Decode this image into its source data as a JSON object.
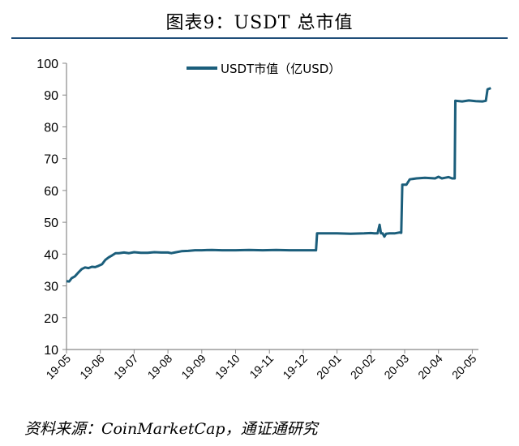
{
  "figure": {
    "title": "图表9：USDT 总市值",
    "source": "资料来源：CoinMarketCap，通证通研究"
  },
  "chart_data": {
    "type": "line",
    "series_color": "#1b5e7b",
    "yticks": [
      "100",
      "90",
      "80",
      "70",
      "60",
      "50",
      "40",
      "30",
      "20",
      "10"
    ],
    "ylim": [
      10,
      100
    ],
    "xticks": [
      "19-05",
      "19-06",
      "19-07",
      "19-08",
      "19-09",
      "19-10",
      "19-11",
      "19-12",
      "20-01",
      "20-02",
      "20-03",
      "20-04",
      "20-05"
    ],
    "legend": {
      "label": "USDT市值（亿USD）",
      "placement": "top-center"
    },
    "grid": false,
    "series": [
      {
        "name": "USDT市值（亿USD）",
        "points": [
          [
            0.0,
            31.5
          ],
          [
            0.08,
            31.4
          ],
          [
            0.15,
            32.4
          ],
          [
            0.25,
            33.0
          ],
          [
            0.35,
            34.2
          ],
          [
            0.45,
            35.3
          ],
          [
            0.55,
            35.8
          ],
          [
            0.65,
            35.6
          ],
          [
            0.75,
            36.0
          ],
          [
            0.85,
            35.9
          ],
          [
            0.95,
            36.3
          ],
          [
            1.05,
            36.8
          ],
          [
            1.15,
            38.2
          ],
          [
            1.25,
            39.0
          ],
          [
            1.35,
            39.6
          ],
          [
            1.45,
            40.3
          ],
          [
            1.55,
            40.3
          ],
          [
            1.7,
            40.5
          ],
          [
            1.85,
            40.3
          ],
          [
            2.0,
            40.6
          ],
          [
            2.2,
            40.4
          ],
          [
            2.4,
            40.4
          ],
          [
            2.6,
            40.6
          ],
          [
            2.8,
            40.5
          ],
          [
            3.0,
            40.5
          ],
          [
            3.1,
            40.3
          ],
          [
            3.2,
            40.5
          ],
          [
            3.4,
            40.9
          ],
          [
            3.6,
            41.0
          ],
          [
            3.8,
            41.2
          ],
          [
            4.0,
            41.2
          ],
          [
            4.3,
            41.3
          ],
          [
            4.6,
            41.2
          ],
          [
            5.0,
            41.2
          ],
          [
            5.4,
            41.3
          ],
          [
            5.8,
            41.2
          ],
          [
            6.2,
            41.3
          ],
          [
            6.6,
            41.2
          ],
          [
            7.0,
            41.2
          ],
          [
            7.3,
            41.2
          ],
          [
            7.38,
            41.2
          ],
          [
            7.41,
            46.5
          ],
          [
            7.6,
            46.5
          ],
          [
            8.0,
            46.5
          ],
          [
            8.4,
            46.4
          ],
          [
            8.8,
            46.5
          ],
          [
            9.0,
            46.6
          ],
          [
            9.1,
            46.5
          ],
          [
            9.2,
            46.5
          ],
          [
            9.26,
            49.2
          ],
          [
            9.3,
            46.5
          ],
          [
            9.35,
            46.5
          ],
          [
            9.4,
            45.5
          ],
          [
            9.45,
            46.4
          ],
          [
            9.55,
            46.5
          ],
          [
            9.7,
            46.5
          ],
          [
            9.85,
            46.8
          ],
          [
            9.9,
            46.7
          ],
          [
            9.93,
            61.8
          ],
          [
            10.05,
            61.8
          ],
          [
            10.15,
            63.5
          ],
          [
            10.35,
            63.8
          ],
          [
            10.6,
            64.0
          ],
          [
            10.9,
            63.8
          ],
          [
            11.0,
            64.3
          ],
          [
            11.1,
            63.8
          ],
          [
            11.2,
            64.0
          ],
          [
            11.3,
            64.2
          ],
          [
            11.4,
            63.8
          ],
          [
            11.48,
            63.8
          ],
          [
            11.5,
            88.2
          ],
          [
            11.7,
            88.0
          ],
          [
            11.9,
            88.3
          ],
          [
            12.1,
            88.1
          ],
          [
            12.3,
            88.0
          ],
          [
            12.4,
            88.2
          ],
          [
            12.45,
            91.8
          ],
          [
            12.55,
            92.2
          ]
        ]
      }
    ]
  }
}
